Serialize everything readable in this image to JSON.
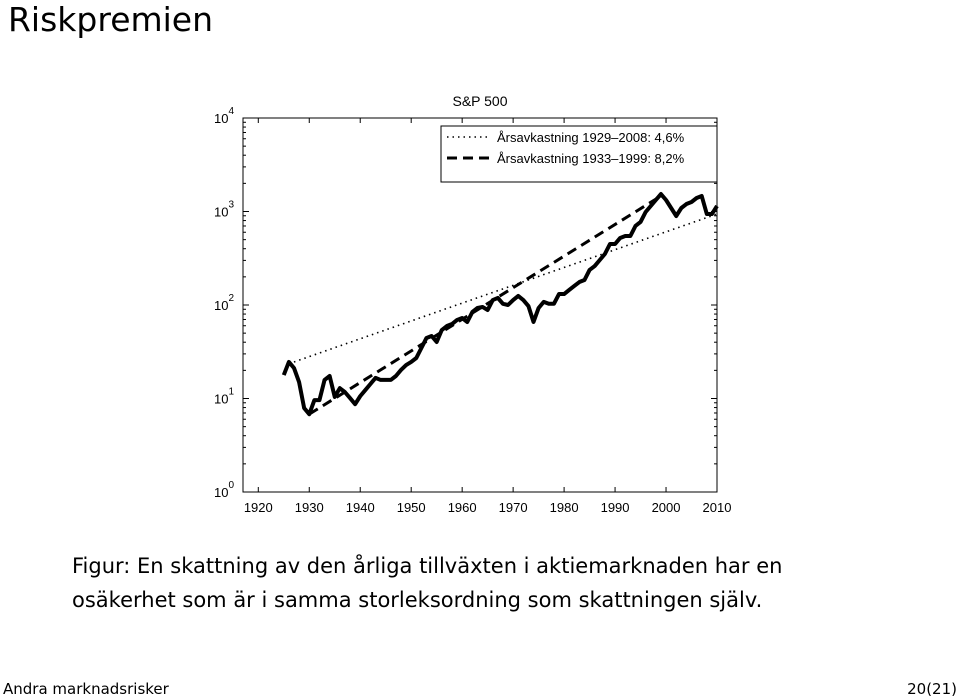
{
  "title": "Riskpremien",
  "caption": [
    "Figur: En skattning av den årliga tillväxten i aktiemarknaden har en",
    "osäkerhet som är i samma storleksordning som skattningen själv."
  ],
  "footer": {
    "left": "Andra marknadsrisker",
    "right": "20(21)"
  },
  "chart_data": {
    "type": "line",
    "title": "S&P 500",
    "log_y": true,
    "legend": "top-right",
    "xlim": [
      1917,
      2010
    ],
    "xticks": [
      1920,
      1930,
      1940,
      1950,
      1960,
      1970,
      1980,
      1990,
      2000,
      2010
    ],
    "ylim": [
      1,
      10000
    ],
    "yticks": [
      {
        "value": 1,
        "label": "10^0"
      },
      {
        "value": 10,
        "label": "10^1"
      },
      {
        "value": 100,
        "label": "10^2"
      },
      {
        "value": 1000,
        "label": "10^3"
      },
      {
        "value": 10000,
        "label": "10^4"
      }
    ],
    "series": [
      {
        "color": "#000000",
        "style": "solid",
        "x": [
          1925,
          1926,
          1927,
          1928,
          1929,
          1930,
          1931,
          1932,
          1933,
          1934,
          1935,
          1936,
          1937,
          1938,
          1939,
          1940,
          1941,
          1942,
          1943,
          1944,
          1945,
          1946,
          1947,
          1948,
          1949,
          1950,
          1951,
          1952,
          1953,
          1954,
          1955,
          1956,
          1957,
          1958,
          1959,
          1960,
          1961,
          1962,
          1963,
          1964,
          1965,
          1966,
          1967,
          1968,
          1969,
          1970,
          1971,
          1972,
          1973,
          1974,
          1975,
          1976,
          1977,
          1978,
          1979,
          1980,
          1981,
          1982,
          1983,
          1984,
          1985,
          1986,
          1987,
          1988,
          1989,
          1990,
          1991,
          1992,
          1993,
          1994,
          1995,
          1996,
          1997,
          1998,
          1999,
          2000,
          2001,
          2002,
          2003,
          2004,
          2005,
          2006,
          2007,
          2008,
          2009,
          2010
        ],
        "values": [
          17.8,
          24.6,
          21.2,
          15.0,
          7.9,
          6.8,
          9.6,
          9.6,
          15.8,
          17.4,
          10.4,
          12.9,
          11.7,
          10.1,
          8.7,
          10.6,
          12.3,
          14.3,
          16.6,
          15.8,
          15.8,
          15.8,
          17.4,
          20.2,
          22.8,
          24.6,
          27.1,
          34.7,
          44.4,
          46.6,
          40.2,
          54.0,
          59.6,
          62.6,
          69.2,
          72.6,
          65.8,
          84.2,
          92.9,
          95.3,
          88.4,
          113,
          119,
          103,
          100,
          113,
          125,
          113,
          97.5,
          65.8,
          92.9,
          108,
          103,
          103,
          131,
          131,
          145,
          160,
          176,
          185,
          237,
          261,
          303,
          351,
          449,
          449,
          521,
          547,
          547,
          700,
          773,
          988,
          1145,
          1327,
          1538,
          1327,
          1090,
          895,
          1090,
          1202,
          1264,
          1394,
          1465,
          940,
          940,
          1145
        ]
      },
      {
        "name": "Årsavkastning 1929–2008: 4,6%",
        "color": "#000000",
        "style": "dotted",
        "x": [
          1927,
          2010
        ],
        "values": [
          24.6,
          940
        ]
      },
      {
        "name": "Årsavkastning 1933–1999: 8,2%",
        "color": "#000000",
        "style": "dashed",
        "x": [
          1930,
          1999
        ],
        "values": [
          6.8,
          1465
        ]
      }
    ]
  }
}
